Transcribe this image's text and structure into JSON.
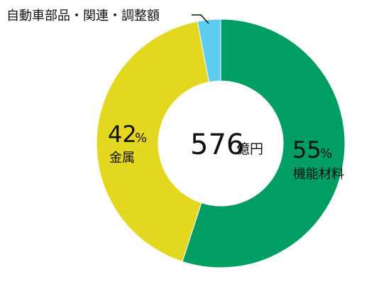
{
  "chart_data": {
    "type": "pie",
    "total": {
      "value": "576",
      "unit": "億円"
    },
    "slices": [
      {
        "label": "機能材料",
        "value": 55,
        "value_label": "55",
        "unit": "%",
        "color": "#009e63"
      },
      {
        "label": "金属",
        "value": 42,
        "value_label": "42",
        "unit": "%",
        "color": "#e3d81f"
      },
      {
        "label": "自動車部品・関連・調整額",
        "value": 3,
        "color": "#5ecbf0"
      }
    ]
  }
}
